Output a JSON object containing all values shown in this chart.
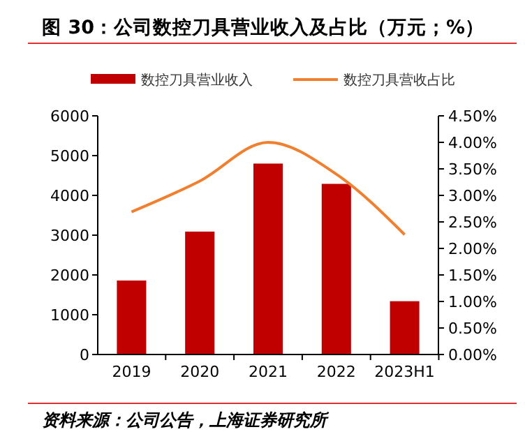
{
  "chart_data": {
    "type": "bar",
    "title": "图 30：公司数控刀具营业收入及占比（万元；%）",
    "categories": [
      "2019",
      "2020",
      "2021",
      "2022",
      "2023H1"
    ],
    "series": [
      {
        "name": "数控刀具营业收入",
        "color": "#c00000",
        "values": [
          1860,
          3090,
          4800,
          4290,
          1340
        ]
      },
      {
        "name": "数控刀具营收占比",
        "type": "line",
        "axis": "y2",
        "color": "#f08030",
        "values": [
          2.69,
          3.27,
          4.0,
          3.4,
          2.26
        ]
      }
    ],
    "ylim": [
      0,
      6000
    ],
    "yticks": [
      0,
      1000,
      2000,
      3000,
      4000,
      5000,
      6000
    ],
    "y2lim": [
      0,
      4.5
    ],
    "y2ticks": [
      {
        "value": 0,
        "label": "0.00%"
      },
      {
        "value": 0.5,
        "label": "0.50%"
      },
      {
        "value": 1,
        "label": "1.00%"
      },
      {
        "value": 1.5,
        "label": "1.50%"
      },
      {
        "value": 2,
        "label": "2.00%"
      },
      {
        "value": 2.5,
        "label": "2.50%"
      },
      {
        "value": 3,
        "label": "3.00%"
      },
      {
        "value": 3.5,
        "label": "3.50%"
      },
      {
        "value": 4,
        "label": "4.00%"
      },
      {
        "value": 4.5,
        "label": "4.50%"
      }
    ],
    "legend": "top",
    "grid": false,
    "marker": "none",
    "annotations": [
      "资料来源：公司公告，上海证券研究所"
    ]
  }
}
